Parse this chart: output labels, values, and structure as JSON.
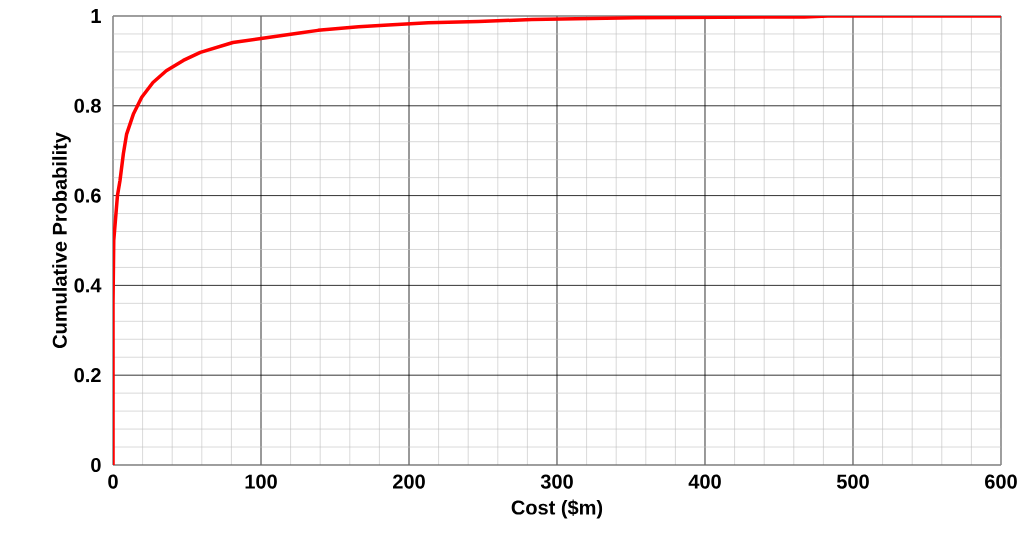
{
  "chart_data": {
    "type": "line",
    "xlabel": "Cost ($m)",
    "ylabel": "Cumulative Probability",
    "color": "#ff0000",
    "grid": true,
    "x": [
      0,
      0,
      0.5,
      1,
      2,
      3,
      4.7,
      7,
      9.2,
      13.7,
      19.4,
      27,
      36,
      47.5,
      59,
      81,
      100,
      126,
      138.5,
      166,
      186,
      213,
      247,
      283,
      353,
      467,
      483,
      600
    ],
    "values": [
      0,
      0.36,
      0.5,
      0.52,
      0.56,
      0.6,
      0.633,
      0.693,
      0.737,
      0.781,
      0.819,
      0.852,
      0.878,
      0.901,
      0.919,
      0.941,
      0.95,
      0.962,
      0.968,
      0.976,
      0.98,
      0.985,
      0.988,
      0.992,
      0.996,
      0.998,
      1,
      1
    ],
    "xlim": [
      0,
      600
    ],
    "ylim": [
      0,
      1
    ],
    "xticks": [
      0,
      100,
      200,
      300,
      400,
      500,
      600
    ],
    "yticks": [
      0,
      0.2,
      0.4,
      0.6,
      0.8,
      1
    ]
  }
}
